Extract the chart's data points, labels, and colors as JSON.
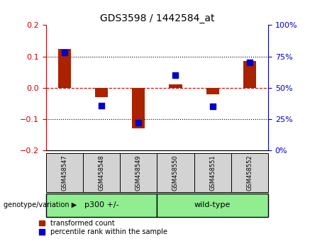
{
  "title": "GDS3598 / 1442584_at",
  "samples": [
    "GSM458547",
    "GSM458548",
    "GSM458549",
    "GSM458550",
    "GSM458551",
    "GSM458552"
  ],
  "transformed_count": [
    0.125,
    -0.03,
    -0.13,
    0.01,
    -0.02,
    0.085
  ],
  "percentile_rank": [
    78,
    36,
    22,
    60,
    35,
    70
  ],
  "groups": [
    {
      "label": "p300 +/-",
      "start": 0,
      "end": 2,
      "color": "#90ee90"
    },
    {
      "label": "wild-type",
      "start": 3,
      "end": 5,
      "color": "#90ee90"
    }
  ],
  "ylim_left": [
    -0.2,
    0.2
  ],
  "ylim_right": [
    0,
    100
  ],
  "yticks_left": [
    -0.2,
    -0.1,
    0.0,
    0.1,
    0.2
  ],
  "yticks_right": [
    0,
    25,
    50,
    75,
    100
  ],
  "hline_zero_color": "#cc0000",
  "hline_dotted_color": "#000000",
  "bar_color": "#aa2200",
  "dot_color": "#0000cc",
  "bar_width": 0.35,
  "dot_size": 40,
  "group_label_prefix": "genotype/variation",
  "legend_items": [
    "transformed count",
    "percentile rank within the sample"
  ],
  "background_plot": "#ffffff",
  "background_sample": "#d3d3d3",
  "tick_color_left": "#cc0000",
  "tick_color_right": "#0000cc"
}
